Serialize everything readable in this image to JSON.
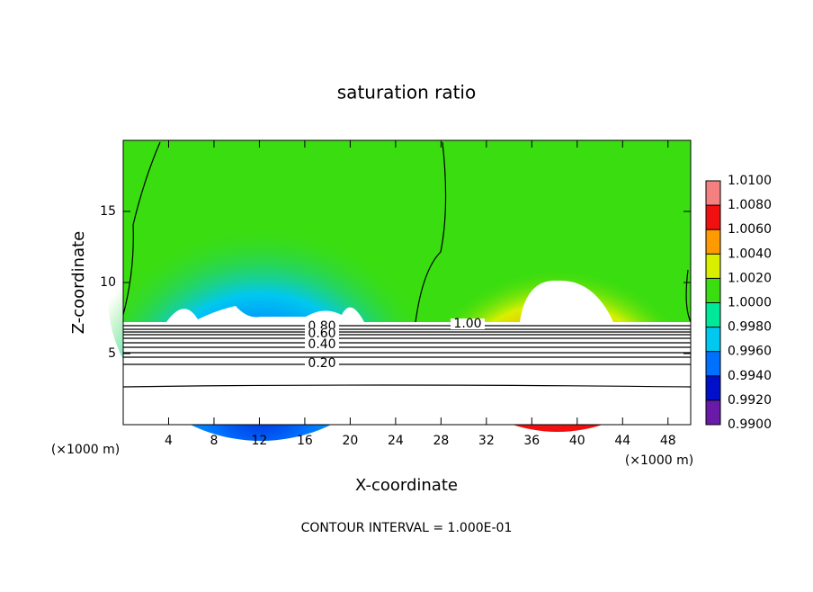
{
  "chart_data": {
    "type": "contour",
    "title": "saturation ratio",
    "x_label": "X-coordinate",
    "y_label": "Z-coordinate",
    "x_unit": "(×1000 m)",
    "xlim": [
      0,
      50
    ],
    "xticks": [
      4,
      8,
      12,
      16,
      20,
      24,
      28,
      32,
      36,
      40,
      44,
      48
    ],
    "ylim": [
      0,
      20
    ],
    "yticks": [
      5,
      10,
      15
    ],
    "colorbar": {
      "lim": [
        0.99,
        1.01
      ],
      "ticks": [
        {
          "value": 0.99,
          "label": "0.9900"
        },
        {
          "value": 0.992,
          "label": "0.9920"
        },
        {
          "value": 0.994,
          "label": "0.9940"
        },
        {
          "value": 0.996,
          "label": "0.9960"
        },
        {
          "value": 0.998,
          "label": "0.9980"
        },
        {
          "value": 1.0,
          "label": "1.0000"
        },
        {
          "value": 1.002,
          "label": "1.0020"
        },
        {
          "value": 1.004,
          "label": "1.0040"
        },
        {
          "value": 1.006,
          "label": "1.0060"
        },
        {
          "value": 1.008,
          "label": "1.0080"
        },
        {
          "value": 1.01,
          "label": "1.0100"
        }
      ],
      "colors": [
        "#6a1aa8",
        "#0010c8",
        "#0070ff",
        "#00c8f0",
        "#00e89a",
        "#3add10",
        "#d8f000",
        "#ff9a00",
        "#f01010",
        "#f58080"
      ]
    },
    "contour_labels": [
      {
        "value": 1.0,
        "label": "1.00"
      },
      {
        "value": 0.8,
        "label": "0.80"
      },
      {
        "value": 0.6,
        "label": "0.60"
      },
      {
        "value": 0.4,
        "label": "0.40"
      },
      {
        "value": 0.2,
        "label": "0.20"
      }
    ],
    "footer": "CONTOUR INTERVAL = 1.000E-01"
  }
}
